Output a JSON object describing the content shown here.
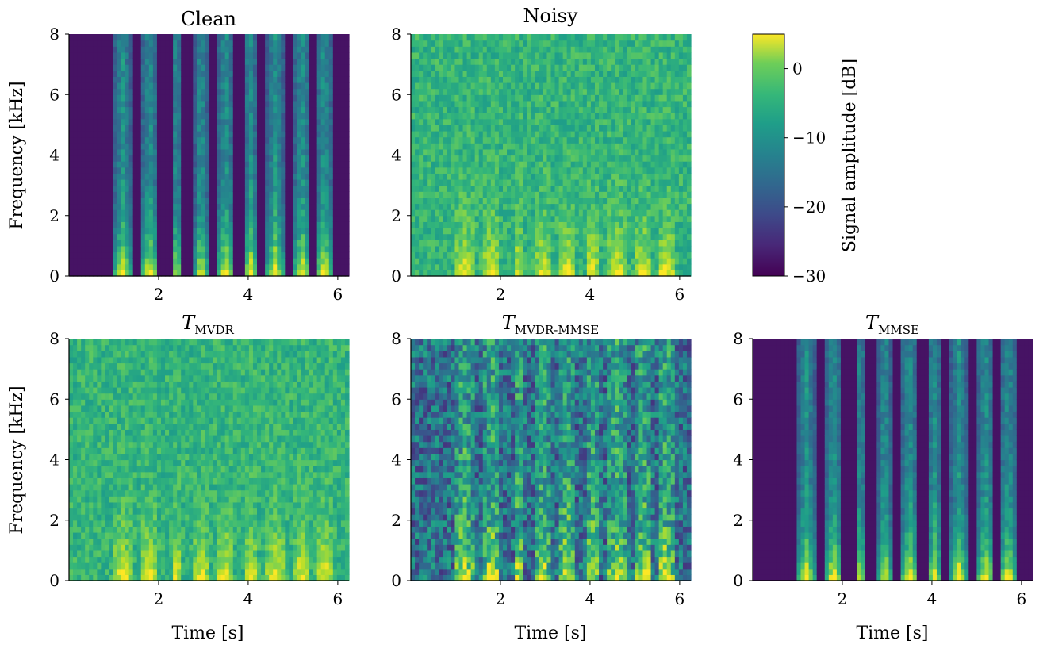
{
  "chart_data": [
    {
      "type": "heatmap",
      "title": "Clean",
      "ylabel": "Frequency [kHz]",
      "xlabel": "",
      "xlim": [
        0,
        6.25
      ],
      "ylim": [
        0,
        8
      ],
      "xticks": [
        2,
        4,
        6
      ],
      "yticks": [
        0,
        2,
        4,
        6,
        8
      ],
      "background": "quiet",
      "colormap": "viridis"
    },
    {
      "type": "heatmap",
      "title": "Noisy",
      "ylabel": "",
      "xlabel": "",
      "xlim": [
        0,
        6.25
      ],
      "ylim": [
        0,
        8
      ],
      "xticks": [
        2,
        4,
        6
      ],
      "yticks": [
        0,
        2,
        4,
        6,
        8
      ],
      "background": "noisy",
      "colormap": "viridis"
    },
    {
      "type": "heatmap",
      "title_main": "T",
      "title_sub": "MVDR",
      "ylabel": "Frequency [kHz]",
      "xlabel": "Time [s]",
      "xlim": [
        0,
        6.25
      ],
      "ylim": [
        0,
        8
      ],
      "xticks": [
        2,
        4,
        6
      ],
      "yticks": [
        0,
        2,
        4,
        6,
        8
      ],
      "background": "noisy",
      "colormap": "viridis"
    },
    {
      "type": "heatmap",
      "title_main": "T",
      "title_sub": "MVDR-MMSE",
      "ylabel": "",
      "xlabel": "Time [s]",
      "xlim": [
        0,
        6.25
      ],
      "ylim": [
        0,
        8
      ],
      "xticks": [
        2,
        4,
        6
      ],
      "yticks": [
        0,
        2,
        4,
        6,
        8
      ],
      "background": "mixed",
      "colormap": "viridis"
    },
    {
      "type": "heatmap",
      "title_main": "T",
      "title_sub": "MMSE",
      "ylabel": "",
      "xlabel": "Time [s]",
      "xlim": [
        0,
        6.25
      ],
      "ylim": [
        0,
        8
      ],
      "xticks": [
        2,
        4,
        6
      ],
      "yticks": [
        0,
        2,
        4,
        6,
        8
      ],
      "background": "quiet",
      "colormap": "viridis"
    }
  ],
  "colorbar": {
    "label": "Signal amplitude [dB]",
    "range": [
      -30,
      5
    ],
    "ticks": [
      0,
      -10,
      -20,
      -30
    ],
    "tick_labels": [
      "0",
      "−10",
      "−20",
      "−30"
    ],
    "colormap": "viridis"
  },
  "colors": {
    "viridis_low": "#440154",
    "viridis_mid": "#21918c",
    "viridis_high": "#fde725"
  }
}
